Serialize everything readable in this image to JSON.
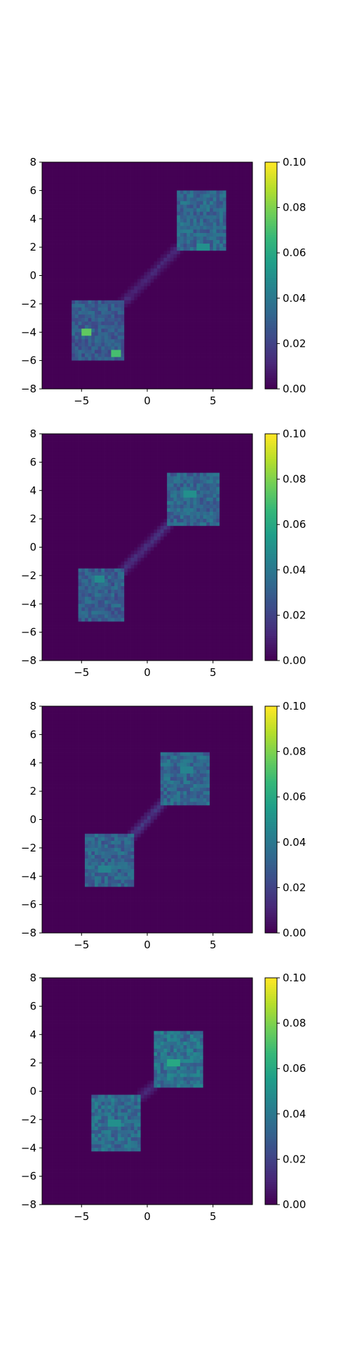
{
  "colormap": {
    "name": "viridis",
    "stops": [
      "#440154",
      "#482878",
      "#3e4989",
      "#31688e",
      "#26828e",
      "#1f9e89",
      "#35b779",
      "#6ece58",
      "#b5de2b",
      "#fde725"
    ]
  },
  "chart_data": [
    {
      "type": "heatmap",
      "title": "",
      "xlabel": "",
      "ylabel": "",
      "xlim": [
        -8,
        8
      ],
      "ylim": [
        -8,
        8
      ],
      "x_ticks": [
        -5,
        0,
        5
      ],
      "x_tick_labels": [
        "−5",
        "0",
        "5"
      ],
      "y_ticks": [
        8,
        6,
        4,
        2,
        0,
        -2,
        -4,
        -6,
        -8
      ],
      "y_tick_labels": [
        "8",
        "6",
        "4",
        "2",
        "0",
        "−2",
        "−4",
        "−6",
        "−8"
      ],
      "colorbar": {
        "range": [
          0.0,
          0.1
        ],
        "ticks": [
          0.0,
          0.02,
          0.04,
          0.06,
          0.08,
          0.1
        ],
        "tick_labels": [
          "0.00",
          "0.02",
          "0.04",
          "0.06",
          "0.08",
          "0.10"
        ]
      },
      "background_value": 0.0,
      "blobs": [
        {
          "x_range": [
            -5.8,
            -1.7
          ],
          "y_range": [
            -5.9,
            -1.8
          ],
          "mean_value": 0.028
        },
        {
          "x_range": [
            2.2,
            6.1
          ],
          "y_range": [
            1.8,
            5.9
          ],
          "mean_value": 0.033
        }
      ],
      "bridge": {
        "from": [
          -1.7,
          -1.8
        ],
        "to": [
          2.2,
          1.8
        ],
        "value": 0.012
      },
      "hotspots": [
        {
          "x": -4.6,
          "y": -3.9,
          "value": 0.075
        },
        {
          "x": -2.4,
          "y": -5.6,
          "value": 0.07
        },
        {
          "x": 4.2,
          "y": 2.1,
          "value": 0.05
        }
      ]
    },
    {
      "type": "heatmap",
      "title": "",
      "xlabel": "",
      "ylabel": "",
      "xlim": [
        -8,
        8
      ],
      "ylim": [
        -8,
        8
      ],
      "x_ticks": [
        -5,
        0,
        5
      ],
      "x_tick_labels": [
        "−5",
        "0",
        "5"
      ],
      "y_ticks": [
        8,
        6,
        4,
        2,
        0,
        -2,
        -4,
        -6,
        -8
      ],
      "y_tick_labels": [
        "8",
        "6",
        "4",
        "2",
        "0",
        "−2",
        "−4",
        "−6",
        "−8"
      ],
      "colorbar": {
        "range": [
          0.0,
          0.1
        ],
        "ticks": [
          0.0,
          0.02,
          0.04,
          0.06,
          0.08,
          0.1
        ],
        "tick_labels": [
          "0.00",
          "0.02",
          "0.04",
          "0.06",
          "0.08",
          "0.10"
        ]
      },
      "background_value": 0.0,
      "blobs": [
        {
          "x_range": [
            -5.2,
            -1.8
          ],
          "y_range": [
            -5.3,
            -1.6
          ],
          "mean_value": 0.03
        },
        {
          "x_range": [
            1.5,
            5.4
          ],
          "y_range": [
            1.5,
            5.3
          ],
          "mean_value": 0.032
        }
      ],
      "bridge": {
        "from": [
          -1.8,
          -1.6
        ],
        "to": [
          1.5,
          1.5
        ],
        "value": 0.014
      },
      "hotspots": [
        {
          "x": 3.2,
          "y": 3.7,
          "value": 0.05
        },
        {
          "x": -3.6,
          "y": -2.2,
          "value": 0.048
        }
      ]
    },
    {
      "type": "heatmap",
      "title": "",
      "xlabel": "",
      "ylabel": "",
      "xlim": [
        -8,
        8
      ],
      "ylim": [
        -8,
        8
      ],
      "x_ticks": [
        -5,
        0,
        5
      ],
      "x_tick_labels": [
        "−5",
        "0",
        "5"
      ],
      "y_ticks": [
        8,
        6,
        4,
        2,
        0,
        -2,
        -4,
        -6,
        -8
      ],
      "y_tick_labels": [
        "8",
        "6",
        "4",
        "2",
        "0",
        "−2",
        "−4",
        "−6",
        "−8"
      ],
      "colorbar": {
        "range": [
          0.0,
          0.1
        ],
        "ticks": [
          0.0,
          0.02,
          0.04,
          0.06,
          0.08,
          0.1
        ],
        "tick_labels": [
          "0.00",
          "0.02",
          "0.04",
          "0.06",
          "0.08",
          "0.10"
        ]
      },
      "background_value": 0.0,
      "blobs": [
        {
          "x_range": [
            -4.8,
            -1.0
          ],
          "y_range": [
            -4.8,
            -1.0
          ],
          "mean_value": 0.032
        },
        {
          "x_range": [
            1.0,
            4.8
          ],
          "y_range": [
            1.0,
            4.8
          ],
          "mean_value": 0.033
        }
      ],
      "bridge": {
        "from": [
          -1.0,
          -1.0
        ],
        "to": [
          1.0,
          1.0
        ],
        "value": 0.016
      },
      "hotspots": [
        {
          "x": -3.2,
          "y": -3.4,
          "value": 0.045
        },
        {
          "x": 3.0,
          "y": 3.4,
          "value": 0.045
        }
      ]
    },
    {
      "type": "heatmap",
      "title": "",
      "xlabel": "",
      "ylabel": "",
      "xlim": [
        -8,
        8
      ],
      "ylim": [
        -8,
        8
      ],
      "x_ticks": [
        -5,
        0,
        5
      ],
      "x_tick_labels": [
        "−5",
        "0",
        "5"
      ],
      "y_ticks": [
        8,
        6,
        4,
        2,
        0,
        -2,
        -4,
        -6,
        -8
      ],
      "y_tick_labels": [
        "8",
        "6",
        "4",
        "2",
        "0",
        "−2",
        "−4",
        "−6",
        "−8"
      ],
      "colorbar": {
        "range": [
          0.0,
          0.1
        ],
        "ticks": [
          0.0,
          0.02,
          0.04,
          0.06,
          0.08,
          0.1
        ],
        "tick_labels": [
          "0.00",
          "0.02",
          "0.04",
          "0.06",
          "0.08",
          "0.10"
        ]
      },
      "background_value": 0.0,
      "blobs": [
        {
          "x_range": [
            -4.3,
            -0.4
          ],
          "y_range": [
            -4.3,
            -0.3
          ],
          "mean_value": 0.035
        },
        {
          "x_range": [
            0.4,
            4.3
          ],
          "y_range": [
            0.3,
            4.3
          ],
          "mean_value": 0.037
        }
      ],
      "bridge": {
        "from": [
          -0.4,
          -0.3
        ],
        "to": [
          0.4,
          0.3
        ],
        "value": 0.012
      },
      "hotspots": [
        {
          "x": 2.0,
          "y": 2.0,
          "value": 0.06
        },
        {
          "x": -2.5,
          "y": -2.3,
          "value": 0.05
        }
      ]
    }
  ]
}
